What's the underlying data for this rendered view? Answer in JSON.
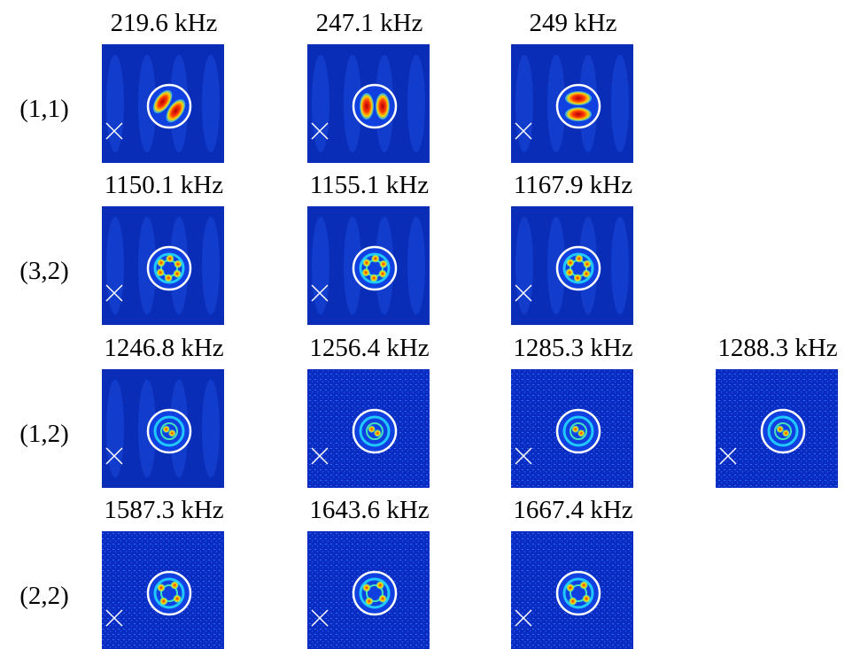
{
  "rows": [
    {
      "label": "(1,1)",
      "panels": [
        {
          "title": "219.6 kHz"
        },
        {
          "title": "247.1 kHz"
        },
        {
          "title": "249 kHz"
        }
      ]
    },
    {
      "label": "(3,2)",
      "panels": [
        {
          "title": "1150.1 kHz"
        },
        {
          "title": "1155.1 kHz"
        },
        {
          "title": "1167.9 kHz"
        }
      ]
    },
    {
      "label": "(1,2)",
      "panels": [
        {
          "title": "1246.8 kHz"
        },
        {
          "title": "1256.4 kHz"
        },
        {
          "title": "1285.3 kHz"
        },
        {
          "title": "1288.3 kHz"
        }
      ]
    },
    {
      "label": "(2,2)",
      "panels": [
        {
          "title": "1587.3 kHz"
        },
        {
          "title": "1643.6 kHz"
        },
        {
          "title": "1667.4 kHz"
        }
      ]
    }
  ]
}
